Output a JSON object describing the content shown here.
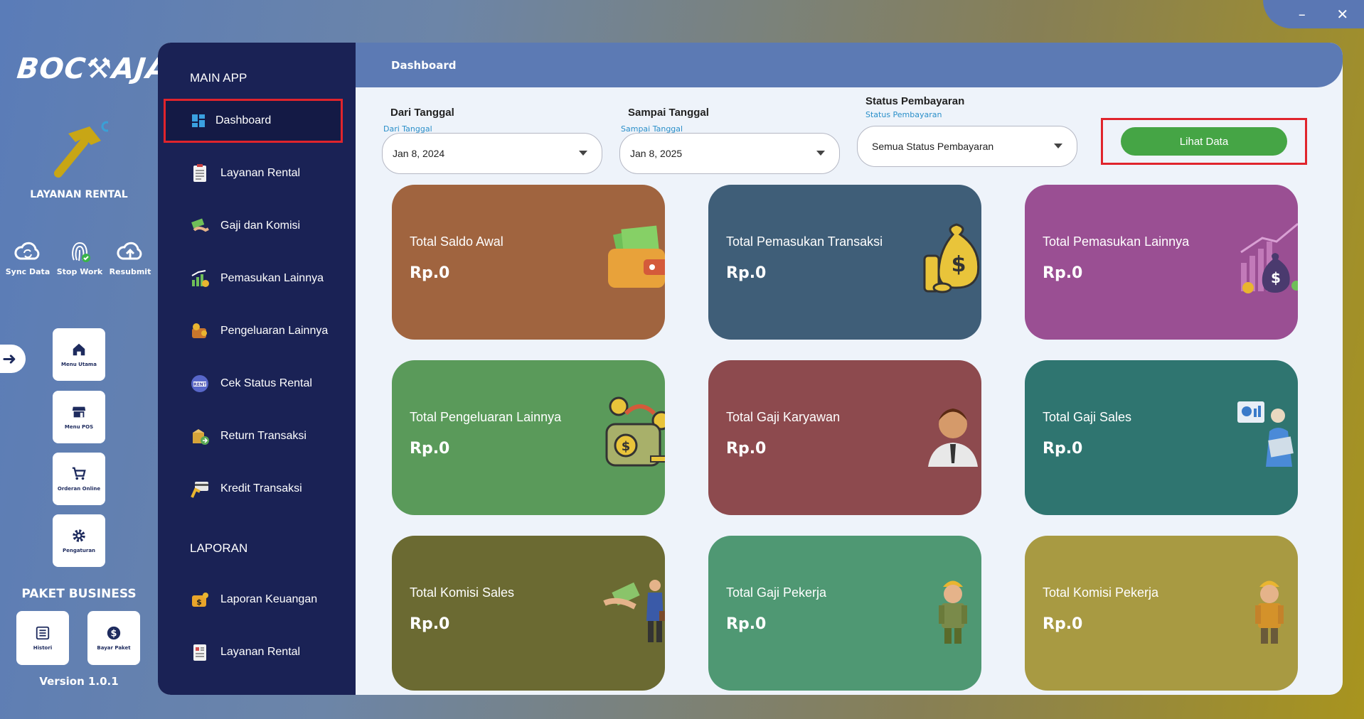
{
  "window": {
    "minimize": "–",
    "close": "✕"
  },
  "brand": {
    "logo": "BOC⚒AJA",
    "app_title": "LAYANAN RENTAL",
    "version": "Version 1.0.1",
    "package": "PAKET BUSINESS"
  },
  "quick_actions": [
    {
      "label": "Sync Data",
      "icon": "cloud-sync-icon"
    },
    {
      "label": "Stop Work",
      "icon": "fingerprint-icon"
    },
    {
      "label": "Resubmit",
      "icon": "cloud-upload-icon"
    }
  ],
  "tiles": [
    {
      "label": "Menu Utama",
      "icon": "home-icon"
    },
    {
      "label": "Menu POS",
      "icon": "store-icon"
    },
    {
      "label": "Orderan Online",
      "icon": "cart-icon"
    },
    {
      "label": "Pengaturan",
      "icon": "gear-icon"
    }
  ],
  "package_tiles": [
    {
      "label": "Histori",
      "icon": "history-icon"
    },
    {
      "label": "Bayar Paket",
      "icon": "dollar-icon"
    }
  ],
  "sidebar": {
    "main_header": "MAIN APP",
    "main_items": [
      {
        "label": "Dashboard",
        "icon": "dashboard-icon",
        "active": true
      },
      {
        "label": "Layanan Rental",
        "icon": "clipboard-icon"
      },
      {
        "label": "Gaji dan Komisi",
        "icon": "money-hand-icon"
      },
      {
        "label": "Pemasukan Lainnya",
        "icon": "income-icon"
      },
      {
        "label": "Pengeluaran Lainnya",
        "icon": "expense-icon"
      },
      {
        "label": "Cek Status Rental",
        "icon": "rent-icon"
      },
      {
        "label": "Return Transaksi",
        "icon": "return-icon"
      },
      {
        "label": "Kredit Transaksi",
        "icon": "credit-card-icon"
      }
    ],
    "report_header": "LAPORAN",
    "report_items": [
      {
        "label": "Laporan Keuangan",
        "icon": "report-finance-icon"
      },
      {
        "label": "Layanan Rental",
        "icon": "report-rental-icon"
      }
    ]
  },
  "header": {
    "title": "Dashboard"
  },
  "filters": {
    "from": {
      "label": "Dari Tanggal",
      "sub": "Dari Tanggal",
      "value": "Jan 8, 2024"
    },
    "to": {
      "label": "Sampai Tanggal",
      "sub": "Sampai Tanggal",
      "value": "Jan 8, 2025"
    },
    "status": {
      "label": "Status Pembayaran",
      "sub": "Status Pembayaran",
      "value": "Semua Status Pembayaran"
    },
    "submit_label": "Lihat Data"
  },
  "cards": [
    {
      "title": "Total Saldo Awal",
      "value": "Rp.0",
      "color": "#a0643f",
      "icon": "wallet-icon"
    },
    {
      "title": "Total Pemasukan Transaksi",
      "value": "Rp.0",
      "color": "#3f5e78",
      "icon": "money-bag-icon"
    },
    {
      "title": "Total Pemasukan Lainnya",
      "value": "Rp.0",
      "color": "#9a4f93",
      "icon": "growth-chart-icon"
    },
    {
      "title": "Total Pengeluaran Lainnya",
      "value": "Rp.0",
      "color": "#5a9a5a",
      "icon": "expense-wallet-icon"
    },
    {
      "title": "Total Gaji Karyawan",
      "value": "Rp.0",
      "color": "#8d4a4e",
      "icon": "employee-icon"
    },
    {
      "title": "Total Gaji Sales",
      "value": "Rp.0",
      "color": "#2f7570",
      "icon": "sales-person-icon"
    },
    {
      "title": "Total Komisi Sales",
      "value": "Rp.0",
      "color": "#6b6a32",
      "icon": "commission-icon"
    },
    {
      "title": "Total Gaji Pekerja",
      "value": "Rp.0",
      "color": "#4f9873",
      "icon": "worker-icon"
    },
    {
      "title": "Total Komisi Pekerja",
      "value": "Rp.0",
      "color": "#a89a42",
      "icon": "worker-commission-icon"
    }
  ]
}
